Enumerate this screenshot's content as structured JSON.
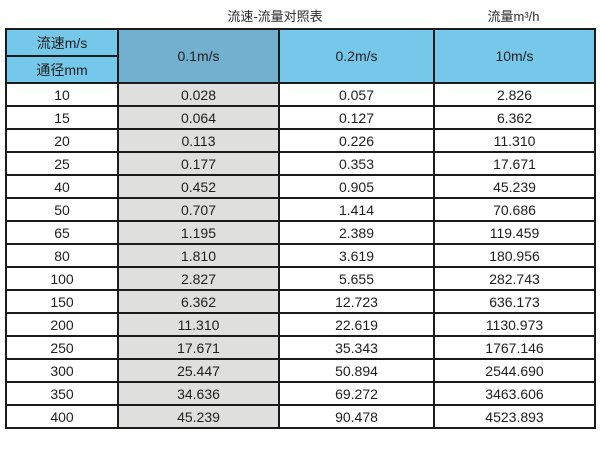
{
  "titles": {
    "left": "流速-流量对照表",
    "right": "流量m³/h"
  },
  "table": {
    "corner_top": "流速m/s",
    "corner_bottom": "通径mm",
    "velocity_columns": [
      "0.1m/s",
      "0.2m/s",
      "10m/s"
    ],
    "rows": [
      {
        "diameter": "10",
        "values": [
          "0.028",
          "0.057",
          "2.826"
        ]
      },
      {
        "diameter": "15",
        "values": [
          "0.064",
          "0.127",
          "6.362"
        ]
      },
      {
        "diameter": "20",
        "values": [
          "0.113",
          "0.226",
          "11.310"
        ]
      },
      {
        "diameter": "25",
        "values": [
          "0.177",
          "0.353",
          "17.671"
        ]
      },
      {
        "diameter": "40",
        "values": [
          "0.452",
          "0.905",
          "45.239"
        ]
      },
      {
        "diameter": "50",
        "values": [
          "0.707",
          "1.414",
          "70.686"
        ]
      },
      {
        "diameter": "65",
        "values": [
          "1.195",
          "2.389",
          "119.459"
        ]
      },
      {
        "diameter": "80",
        "values": [
          "1.810",
          "3.619",
          "180.956"
        ]
      },
      {
        "diameter": "100",
        "values": [
          "2.827",
          "5.655",
          "282.743"
        ]
      },
      {
        "diameter": "150",
        "values": [
          "6.362",
          "12.723",
          "636.173"
        ]
      },
      {
        "diameter": "200",
        "values": [
          "11.310",
          "22.619",
          "1130.973"
        ]
      },
      {
        "diameter": "250",
        "values": [
          "17.671",
          "35.343",
          "1767.146"
        ]
      },
      {
        "diameter": "300",
        "values": [
          "25.447",
          "50.894",
          "2544.690"
        ]
      },
      {
        "diameter": "350",
        "values": [
          "34.636",
          "69.272",
          "3463.606"
        ]
      },
      {
        "diameter": "400",
        "values": [
          "45.239",
          "90.478",
          "4523.893"
        ]
      }
    ]
  },
  "colors": {
    "header_blue": "#76C8EB",
    "header_blue_muted": "#73AFCE",
    "column_gray": "#DFDFDE",
    "border": "#1b1b1b"
  },
  "chart_data": {
    "type": "table",
    "title": "流速-流量对照表",
    "flow_unit_label": "流量m³/h",
    "columns_label": "流速m/s",
    "rows_label": "通径mm",
    "velocities_m_per_s": [
      0.1,
      0.2,
      10
    ],
    "diameters_mm": [
      10,
      15,
      20,
      25,
      40,
      50,
      65,
      80,
      100,
      150,
      200,
      250,
      300,
      350,
      400
    ],
    "series": [
      {
        "name": "0.1m/s",
        "values": [
          0.028,
          0.064,
          0.113,
          0.177,
          0.452,
          0.707,
          1.195,
          1.81,
          2.827,
          6.362,
          11.31,
          17.671,
          25.447,
          34.636,
          45.239
        ]
      },
      {
        "name": "0.2m/s",
        "values": [
          0.057,
          0.127,
          0.226,
          0.353,
          0.905,
          1.414,
          2.389,
          3.619,
          5.655,
          12.723,
          22.619,
          35.343,
          50.894,
          69.272,
          90.478
        ]
      },
      {
        "name": "10m/s",
        "values": [
          2.826,
          6.362,
          11.31,
          17.671,
          45.239,
          70.686,
          119.459,
          180.956,
          282.743,
          636.173,
          1130.973,
          1767.146,
          2544.69,
          3463.606,
          4523.893
        ]
      }
    ]
  }
}
